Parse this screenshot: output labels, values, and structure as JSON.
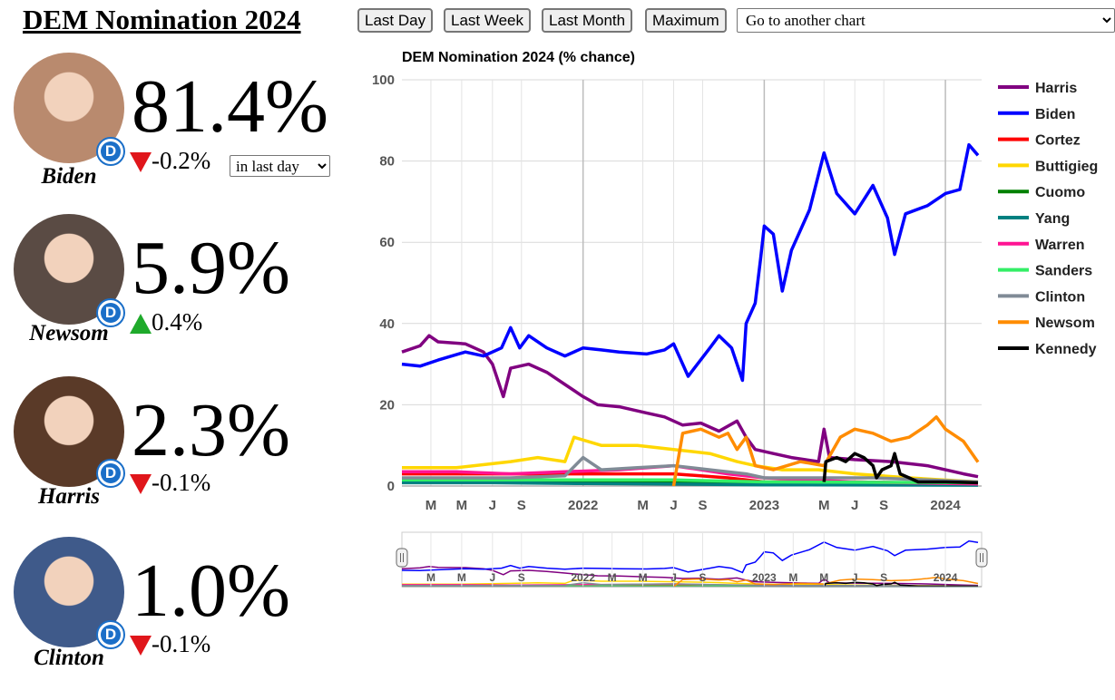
{
  "page_title": "DEM Nomination 2024",
  "range_buttons": [
    "Last Day",
    "Last Week",
    "Last Month",
    "Maximum"
  ],
  "goto_select": "Go to another chart",
  "period_select": "in last day",
  "candidates": [
    {
      "name": "Biden",
      "pct": "81.4%",
      "change": "-0.2%",
      "direction": "down",
      "photo_bg": "#b98a6e",
      "party_badge": "D"
    },
    {
      "name": "Newsom",
      "pct": "5.9%",
      "change": "0.4%",
      "direction": "up",
      "photo_bg": "#5a4b44",
      "party_badge": "D"
    },
    {
      "name": "Harris",
      "pct": "2.3%",
      "change": "-0.1%",
      "direction": "down",
      "photo_bg": "#5a3a28",
      "party_badge": "D"
    },
    {
      "name": "Clinton",
      "pct": "1.0%",
      "change": "-0.1%",
      "direction": "down",
      "photo_bg": "#3f5a8a",
      "party_badge": "D"
    }
  ],
  "colors": {
    "up_arrow": "#1faa2b",
    "down_arrow": "#e0161b",
    "dem_blue": "#1b6fc8"
  },
  "chart_data": {
    "type": "line",
    "title": "DEM Nomination 2024 (% chance)",
    "ylim": [
      0,
      100
    ],
    "yticks": [
      "0",
      "20",
      "40",
      "60",
      "80",
      "100"
    ],
    "x_range": [
      2021.0,
      2024.2
    ],
    "xticks": [
      {
        "label": "M",
        "x": 2021.16
      },
      {
        "label": "M",
        "x": 2021.33
      },
      {
        "label": "J",
        "x": 2021.5
      },
      {
        "label": "S",
        "x": 2021.66
      },
      {
        "label": "2022",
        "x": 2022.0
      },
      {
        "label": "M",
        "x": 2022.33
      },
      {
        "label": "J",
        "x": 2022.5
      },
      {
        "label": "S",
        "x": 2022.66
      },
      {
        "label": "2023",
        "x": 2023.0
      },
      {
        "label": "M",
        "x": 2023.33
      },
      {
        "label": "J",
        "x": 2023.5
      },
      {
        "label": "S",
        "x": 2023.66
      },
      {
        "label": "2024",
        "x": 2024.0
      }
    ],
    "grid": true,
    "legend_position": "right",
    "series": [
      {
        "name": "Harris",
        "color": "#800080",
        "points": [
          [
            2021.0,
            33
          ],
          [
            2021.1,
            34.5
          ],
          [
            2021.15,
            37
          ],
          [
            2021.2,
            35.5
          ],
          [
            2021.35,
            35
          ],
          [
            2021.45,
            33
          ],
          [
            2021.5,
            30
          ],
          [
            2021.56,
            22
          ],
          [
            2021.6,
            29
          ],
          [
            2021.7,
            30
          ],
          [
            2021.8,
            28
          ],
          [
            2021.9,
            25
          ],
          [
            2022.0,
            22
          ],
          [
            2022.08,
            20
          ],
          [
            2022.2,
            19.5
          ],
          [
            2022.35,
            18
          ],
          [
            2022.45,
            17
          ],
          [
            2022.55,
            15
          ],
          [
            2022.65,
            15.5
          ],
          [
            2022.75,
            13.5
          ],
          [
            2022.85,
            16
          ],
          [
            2022.9,
            12
          ],
          [
            2022.95,
            9
          ],
          [
            2023.05,
            8
          ],
          [
            2023.15,
            7
          ],
          [
            2023.3,
            6
          ],
          [
            2023.33,
            14
          ],
          [
            2023.36,
            7
          ],
          [
            2023.5,
            6.5
          ],
          [
            2023.7,
            6
          ],
          [
            2023.9,
            5
          ],
          [
            2024.0,
            4
          ],
          [
            2024.1,
            3
          ],
          [
            2024.18,
            2.3
          ]
        ]
      },
      {
        "name": "Biden",
        "color": "#0000ff",
        "points": [
          [
            2021.0,
            30
          ],
          [
            2021.1,
            29.5
          ],
          [
            2021.2,
            31
          ],
          [
            2021.35,
            33
          ],
          [
            2021.45,
            32
          ],
          [
            2021.55,
            34
          ],
          [
            2021.6,
            39
          ],
          [
            2021.65,
            34
          ],
          [
            2021.7,
            37
          ],
          [
            2021.8,
            34
          ],
          [
            2021.9,
            32
          ],
          [
            2022.0,
            34
          ],
          [
            2022.1,
            33.5
          ],
          [
            2022.2,
            33
          ],
          [
            2022.35,
            32.5
          ],
          [
            2022.45,
            33.5
          ],
          [
            2022.5,
            35
          ],
          [
            2022.58,
            27
          ],
          [
            2022.7,
            34
          ],
          [
            2022.75,
            37
          ],
          [
            2022.82,
            34
          ],
          [
            2022.88,
            26
          ],
          [
            2022.9,
            40
          ],
          [
            2022.95,
            45
          ],
          [
            2022.98,
            56
          ],
          [
            2023.0,
            64
          ],
          [
            2023.05,
            62
          ],
          [
            2023.1,
            48
          ],
          [
            2023.15,
            58
          ],
          [
            2023.25,
            68
          ],
          [
            2023.33,
            82
          ],
          [
            2023.4,
            72
          ],
          [
            2023.5,
            67
          ],
          [
            2023.6,
            74
          ],
          [
            2023.68,
            66
          ],
          [
            2023.72,
            57
          ],
          [
            2023.78,
            67
          ],
          [
            2023.9,
            69
          ],
          [
            2024.0,
            72
          ],
          [
            2024.08,
            73
          ],
          [
            2024.13,
            84
          ],
          [
            2024.18,
            81.4
          ]
        ]
      },
      {
        "name": "Cortez",
        "color": "#ff0000",
        "points": [
          [
            2021.0,
            3
          ],
          [
            2021.3,
            3
          ],
          [
            2021.6,
            3
          ],
          [
            2021.9,
            3
          ],
          [
            2022.2,
            3
          ],
          [
            2022.5,
            3
          ],
          [
            2022.8,
            2
          ],
          [
            2023.0,
            1
          ],
          [
            2023.5,
            1
          ],
          [
            2024.18,
            0.5
          ]
        ]
      },
      {
        "name": "Buttigieg",
        "color": "#ffd700",
        "points": [
          [
            2021.0,
            4.5
          ],
          [
            2021.3,
            4.5
          ],
          [
            2021.6,
            6
          ],
          [
            2021.75,
            7
          ],
          [
            2021.9,
            6
          ],
          [
            2021.95,
            12
          ],
          [
            2022.1,
            10
          ],
          [
            2022.3,
            10
          ],
          [
            2022.5,
            9
          ],
          [
            2022.7,
            8
          ],
          [
            2022.85,
            6
          ],
          [
            2022.95,
            5
          ],
          [
            2023.1,
            4
          ],
          [
            2023.3,
            4
          ],
          [
            2023.5,
            3
          ],
          [
            2023.8,
            2
          ],
          [
            2024.18,
            1
          ]
        ]
      },
      {
        "name": "Cuomo",
        "color": "#008000",
        "points": [
          [
            2021.0,
            1
          ],
          [
            2021.5,
            1
          ],
          [
            2022.0,
            1
          ],
          [
            2022.5,
            1
          ],
          [
            2023.0,
            0.5
          ],
          [
            2024.18,
            0.3
          ]
        ]
      },
      {
        "name": "Yang",
        "color": "#008080",
        "points": [
          [
            2021.0,
            0.8
          ],
          [
            2021.5,
            0.8
          ],
          [
            2022.0,
            0.6
          ],
          [
            2022.5,
            0.5
          ],
          [
            2023.0,
            0.3
          ],
          [
            2024.18,
            0.2
          ]
        ]
      },
      {
        "name": "Warren",
        "color": "#ff1493",
        "points": [
          [
            2021.0,
            3.5
          ],
          [
            2021.3,
            3.5
          ],
          [
            2021.6,
            3
          ],
          [
            2021.9,
            3.5
          ],
          [
            2022.2,
            4
          ],
          [
            2022.5,
            5
          ],
          [
            2022.8,
            3
          ],
          [
            2023.0,
            2
          ],
          [
            2023.5,
            1
          ],
          [
            2024.18,
            0.5
          ]
        ]
      },
      {
        "name": "Sanders",
        "color": "#33ee66",
        "points": [
          [
            2021.0,
            1.5
          ],
          [
            2021.5,
            1.5
          ],
          [
            2022.0,
            1.5
          ],
          [
            2022.5,
            1.5
          ],
          [
            2023.0,
            1
          ],
          [
            2024.18,
            0.8
          ]
        ]
      },
      {
        "name": "Clinton",
        "color": "#808b96",
        "points": [
          [
            2021.0,
            2
          ],
          [
            2021.3,
            2
          ],
          [
            2021.6,
            2
          ],
          [
            2021.9,
            2.5
          ],
          [
            2022.0,
            7
          ],
          [
            2022.1,
            4
          ],
          [
            2022.3,
            4.5
          ],
          [
            2022.5,
            5
          ],
          [
            2022.7,
            4
          ],
          [
            2022.9,
            3
          ],
          [
            2023.0,
            2
          ],
          [
            2023.3,
            2
          ],
          [
            2023.6,
            2
          ],
          [
            2023.9,
            1.5
          ],
          [
            2024.18,
            1
          ]
        ]
      },
      {
        "name": "Newsom",
        "color": "#ff8c00",
        "points": [
          [
            2022.5,
            0
          ],
          [
            2022.55,
            13
          ],
          [
            2022.65,
            14
          ],
          [
            2022.75,
            12
          ],
          [
            2022.8,
            13
          ],
          [
            2022.85,
            9
          ],
          [
            2022.9,
            12
          ],
          [
            2022.95,
            5
          ],
          [
            2023.05,
            4
          ],
          [
            2023.2,
            6
          ],
          [
            2023.33,
            5
          ],
          [
            2023.42,
            12
          ],
          [
            2023.5,
            14
          ],
          [
            2023.6,
            13
          ],
          [
            2023.7,
            11
          ],
          [
            2023.8,
            12
          ],
          [
            2023.9,
            15
          ],
          [
            2023.95,
            17
          ],
          [
            2024.0,
            14
          ],
          [
            2024.1,
            11
          ],
          [
            2024.18,
            5.9
          ]
        ]
      },
      {
        "name": "Kennedy",
        "color": "#000000",
        "points": [
          [
            2023.33,
            1
          ],
          [
            2023.34,
            6
          ],
          [
            2023.4,
            7
          ],
          [
            2023.45,
            6
          ],
          [
            2023.5,
            8
          ],
          [
            2023.55,
            7
          ],
          [
            2023.6,
            5
          ],
          [
            2023.62,
            2
          ],
          [
            2023.65,
            4
          ],
          [
            2023.7,
            5
          ],
          [
            2023.72,
            8
          ],
          [
            2023.75,
            3
          ],
          [
            2023.8,
            2
          ],
          [
            2023.85,
            1
          ],
          [
            2024.0,
            1
          ],
          [
            2024.18,
            0.8
          ]
        ]
      }
    ],
    "navigator": {
      "xticks": [
        "M",
        "M",
        "J",
        "S",
        "2022",
        "M",
        "M",
        "J",
        "S",
        "2023",
        "M",
        "M",
        "J",
        "S",
        "2024"
      ]
    }
  }
}
